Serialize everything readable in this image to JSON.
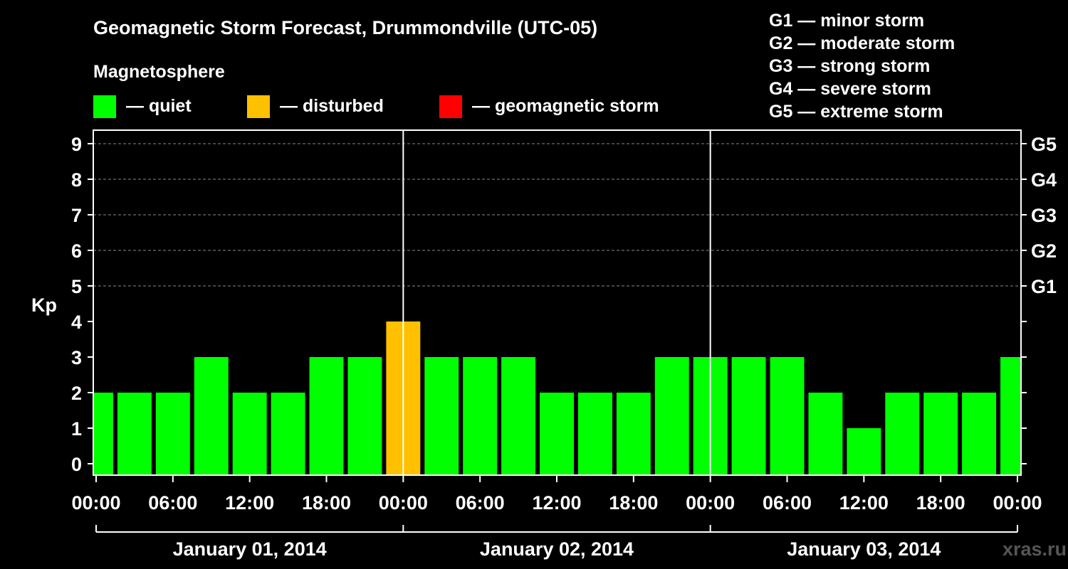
{
  "title": "Geomagnetic Storm Forecast, Drummondville (UTC-05)",
  "legend": {
    "heading": "Magnetosphere",
    "items": [
      {
        "label": "— quiet",
        "color": "#00ff00"
      },
      {
        "label": "— disturbed",
        "color": "#ffc000"
      },
      {
        "label": "— geomagnetic storm",
        "color": "#ff0000"
      }
    ]
  },
  "storm_scale": [
    "G1 — minor storm",
    "G2 — moderate storm",
    "G3 — strong storm",
    "G4 — severe storm",
    "G5 — extreme storm"
  ],
  "watermark": "xras.ru",
  "chart_data": {
    "type": "bar",
    "ylabel": "Kp",
    "ylim": [
      0,
      9
    ],
    "yticks": [
      "0",
      "1",
      "2",
      "3",
      "4",
      "5",
      "6",
      "7",
      "8",
      "9"
    ],
    "right_ticks": [
      {
        "kp": 5,
        "label": "G1"
      },
      {
        "kp": 6,
        "label": "G2"
      },
      {
        "kp": 7,
        "label": "G3"
      },
      {
        "kp": 8,
        "label": "G4"
      },
      {
        "kp": 9,
        "label": "G5"
      }
    ],
    "xticks": [
      "00:00",
      "06:00",
      "12:00",
      "18:00",
      "00:00",
      "06:00",
      "12:00",
      "18:00",
      "00:00",
      "06:00",
      "12:00",
      "18:00",
      "00:00"
    ],
    "days": [
      "January 01, 2014",
      "January 02, 2014",
      "January 03, 2014"
    ],
    "grid": "dashed horizontal lines at Kp 5-9",
    "bars": [
      {
        "start": "00:00",
        "kp": 2,
        "status": "quiet"
      },
      {
        "start": "03:00",
        "kp": 2,
        "status": "quiet"
      },
      {
        "start": "06:00",
        "kp": 2,
        "status": "quiet"
      },
      {
        "start": "09:00",
        "kp": 3,
        "status": "quiet"
      },
      {
        "start": "12:00",
        "kp": 2,
        "status": "quiet"
      },
      {
        "start": "15:00",
        "kp": 2,
        "status": "quiet"
      },
      {
        "start": "18:00",
        "kp": 3,
        "status": "quiet"
      },
      {
        "start": "21:00",
        "kp": 3,
        "status": "quiet"
      },
      {
        "start": "00:00",
        "kp": 4,
        "status": "disturbed"
      },
      {
        "start": "03:00",
        "kp": 3,
        "status": "quiet"
      },
      {
        "start": "06:00",
        "kp": 3,
        "status": "quiet"
      },
      {
        "start": "09:00",
        "kp": 3,
        "status": "quiet"
      },
      {
        "start": "12:00",
        "kp": 2,
        "status": "quiet"
      },
      {
        "start": "15:00",
        "kp": 2,
        "status": "quiet"
      },
      {
        "start": "18:00",
        "kp": 2,
        "status": "quiet"
      },
      {
        "start": "21:00",
        "kp": 3,
        "status": "quiet"
      },
      {
        "start": "00:00",
        "kp": 3,
        "status": "quiet"
      },
      {
        "start": "03:00",
        "kp": 3,
        "status": "quiet"
      },
      {
        "start": "06:00",
        "kp": 3,
        "status": "quiet"
      },
      {
        "start": "09:00",
        "kp": 2,
        "status": "quiet"
      },
      {
        "start": "12:00",
        "kp": 1,
        "status": "quiet"
      },
      {
        "start": "15:00",
        "kp": 2,
        "status": "quiet"
      },
      {
        "start": "18:00",
        "kp": 2,
        "status": "quiet"
      },
      {
        "start": "21:00",
        "kp": 2,
        "status": "quiet"
      },
      {
        "start": "00:00",
        "kp": 3,
        "status": "quiet"
      }
    ]
  }
}
